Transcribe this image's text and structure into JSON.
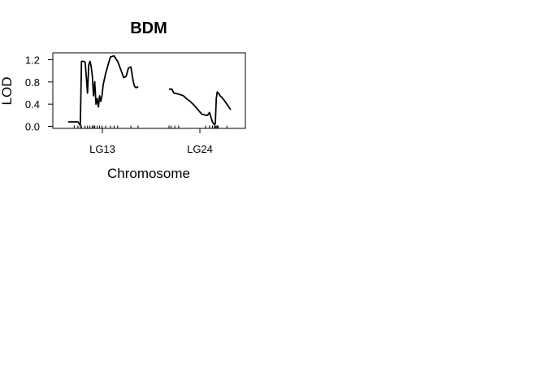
{
  "chart_data": {
    "type": "line",
    "title": "BDM",
    "xlabel": "Chromosome",
    "ylabel": "LOD",
    "ylim": [
      0,
      1.3
    ],
    "y_ticks": [
      {
        "value": 0.0,
        "label": "0.0"
      },
      {
        "value": 0.4,
        "label": "0.4"
      },
      {
        "value": 0.8,
        "label": "0.8"
      },
      {
        "value": 1.2,
        "label": "1.2"
      }
    ],
    "grid": false,
    "legend": "none",
    "line_color": "#000000",
    "chromosomes": [
      {
        "name": "LG13",
        "pos": [
          0,
          8,
          10,
          10.5,
          11,
          13,
          14,
          15,
          16,
          17,
          18,
          19,
          20,
          21,
          22,
          23,
          24,
          25,
          26,
          27,
          28,
          29,
          30,
          31,
          33,
          35,
          38,
          41,
          44,
          46,
          48,
          50,
          52,
          54,
          55,
          56,
          57,
          58
        ],
        "lod": [
          0.08,
          0.08,
          0.02,
          0.6,
          1.17,
          1.17,
          1.15,
          0.9,
          0.6,
          1.1,
          1.17,
          1.08,
          0.9,
          0.55,
          0.8,
          0.4,
          0.5,
          0.35,
          0.55,
          0.45,
          0.55,
          0.75,
          0.85,
          0.95,
          1.1,
          1.25,
          1.27,
          1.17,
          1.0,
          0.88,
          0.9,
          1.05,
          1.07,
          0.8,
          0.72,
          0.7,
          0.7,
          0.72
        ],
        "markers": [
          5,
          8,
          10,
          11,
          14,
          16,
          18,
          20,
          21,
          22,
          24,
          26,
          28,
          31,
          35,
          38,
          41,
          52,
          58
        ]
      },
      {
        "name": "LG24",
        "pos": [
          0,
          3,
          5,
          10,
          15,
          18,
          22,
          26,
          30,
          34,
          38,
          40,
          42,
          45,
          47,
          48,
          49,
          50,
          51,
          52,
          53,
          55,
          58,
          60,
          62,
          64
        ],
        "lod": [
          0.67,
          0.67,
          0.6,
          0.58,
          0.55,
          0.5,
          0.45,
          0.38,
          0.3,
          0.22,
          0.2,
          0.2,
          0.25,
          0.08,
          0.03,
          0.05,
          0.5,
          0.62,
          0.6,
          0.58,
          0.55,
          0.52,
          0.45,
          0.4,
          0.35,
          0.3
        ],
        "markers": [
          0,
          2,
          6,
          10,
          38,
          42,
          45,
          47,
          48,
          49,
          50,
          51,
          60
        ]
      }
    ]
  }
}
